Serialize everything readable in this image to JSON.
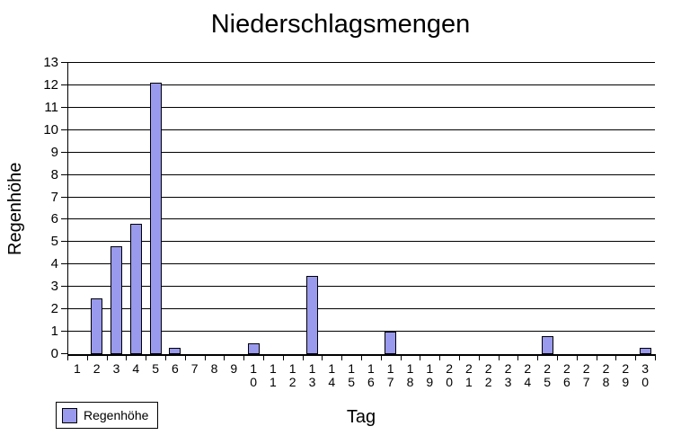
{
  "chart_data": {
    "type": "bar",
    "title": "Niederschlagsmengen",
    "xlabel": "Tag",
    "ylabel": "Regenhöhe",
    "series_name": "Regenhöhe",
    "categories": [
      1,
      2,
      3,
      4,
      5,
      6,
      7,
      8,
      9,
      10,
      11,
      12,
      13,
      14,
      15,
      16,
      17,
      18,
      19,
      20,
      21,
      22,
      23,
      24,
      25,
      26,
      27,
      28,
      29,
      30
    ],
    "values": [
      0,
      2.5,
      4.8,
      5.8,
      12.1,
      0.3,
      0,
      0,
      0,
      0.5,
      0,
      0,
      3.5,
      0,
      0,
      0,
      1,
      0,
      0,
      0,
      0,
      0,
      0,
      0,
      0.8,
      0,
      0,
      0,
      0,
      0.3
    ],
    "ylim": [
      0,
      13
    ],
    "yticks": [
      0,
      1,
      2,
      3,
      4,
      5,
      6,
      7,
      8,
      9,
      10,
      11,
      12,
      13
    ],
    "grid": true,
    "legend_position": "bottom-left",
    "bar_color": "#9999ee",
    "bar_border_color": "#000000",
    "grid_color": "#000000",
    "background_color": "#ffffff"
  }
}
